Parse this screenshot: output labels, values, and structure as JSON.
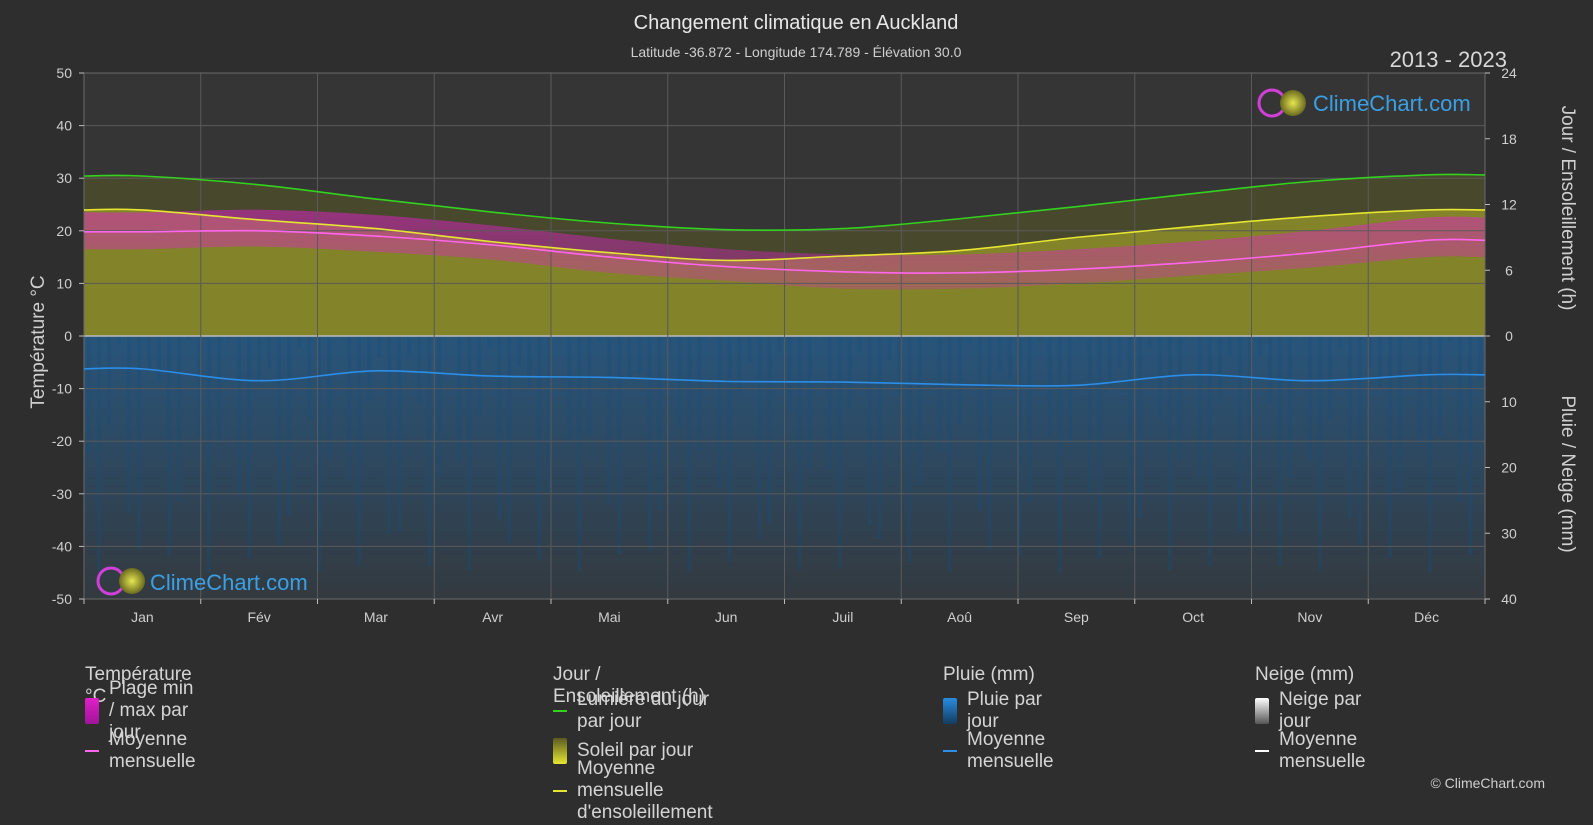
{
  "header": {
    "title": "Changement climatique en Auckland",
    "subtitle": "Latitude -36.872 - Longitude 174.789 - Élévation 30.0",
    "years": "2013 - 2023"
  },
  "brand": {
    "name": "ClimeChart.com",
    "copyright": "© ClimeChart.com"
  },
  "colors": {
    "background": "#2e2e2e",
    "temp_range": "#e020c8",
    "temp_mean": "#ff66ee",
    "daylight": "#32d21e",
    "sunshine": "#b9b92c",
    "sunshine_mean": "#e6e632",
    "rain": "#1e6fb4",
    "rain_mean": "#2b8ee8",
    "snow_mean": "#ffffff"
  },
  "chart_data": {
    "type": "area",
    "categories": [
      "Jan",
      "Fév",
      "Mar",
      "Avr",
      "Mai",
      "Jun",
      "Juil",
      "Aoû",
      "Sep",
      "Oct",
      "Nov",
      "Déc"
    ],
    "y_left": {
      "label": "Température °C",
      "min": -50,
      "max": 50,
      "ticks": [
        50,
        40,
        30,
        20,
        10,
        0,
        -10,
        -20,
        -30,
        -40,
        -50
      ]
    },
    "y_right_top": {
      "label": "Jour / Ensoleillement (h)",
      "min": 0,
      "max": 24,
      "ticks": [
        24,
        18,
        12,
        6,
        0
      ]
    },
    "y_right_bottom": {
      "label": "Pluie / Neige (mm)",
      "min": 0,
      "max": 40,
      "ticks": [
        0,
        10,
        20,
        30,
        40
      ]
    },
    "grid": true,
    "series": [
      {
        "name": "Lumière du jour par jour",
        "unit": "h",
        "values": [
          14.6,
          13.8,
          12.5,
          11.3,
          10.3,
          9.7,
          9.8,
          10.7,
          11.8,
          13.0,
          14.1,
          14.7
        ]
      },
      {
        "name": "Moyenne mensuelle d'ensoleillement",
        "unit": "h",
        "values": [
          11.5,
          10.6,
          9.8,
          8.6,
          7.6,
          6.9,
          7.3,
          7.8,
          9.0,
          10.0,
          10.9,
          11.5
        ]
      },
      {
        "name": "Moyenne mensuelle",
        "group": "Température °C",
        "unit": "°C",
        "values": [
          19.8,
          20.0,
          19.0,
          17.3,
          15.0,
          13.2,
          12.2,
          12.0,
          12.7,
          14.0,
          15.8,
          18.2
        ]
      },
      {
        "name": "Température max",
        "unit": "°C",
        "values": [
          23.5,
          24.0,
          23.0,
          21.0,
          18.5,
          16.5,
          15.5,
          15.5,
          16.5,
          18.0,
          20.0,
          22.5
        ]
      },
      {
        "name": "Température min",
        "unit": "°C",
        "values": [
          16.5,
          17.0,
          16.0,
          14.5,
          12.0,
          10.5,
          9.0,
          9.0,
          10.0,
          11.5,
          13.0,
          15.0
        ]
      },
      {
        "name": "Moyenne mensuelle",
        "group": "Pluie (mm)",
        "unit": "mm",
        "values": [
          5.0,
          6.8,
          5.3,
          6.1,
          6.3,
          6.9,
          7.0,
          7.4,
          7.5,
          5.9,
          6.8,
          5.9
        ]
      },
      {
        "name": "Moyenne mensuelle",
        "group": "Neige (mm)",
        "unit": "mm",
        "values": [
          0,
          0,
          0,
          0,
          0,
          0,
          0,
          0,
          0,
          0,
          0,
          0
        ]
      }
    ]
  },
  "legend": {
    "temperature": {
      "title": "Température °C",
      "items": [
        "Plage min / max par jour",
        "Moyenne mensuelle"
      ]
    },
    "sun": {
      "title": "Jour / Ensoleillement (h)",
      "items": [
        "Lumière du jour par jour",
        "Soleil par jour",
        "Moyenne mensuelle d'ensoleillement"
      ]
    },
    "rain": {
      "title": "Pluie (mm)",
      "items": [
        "Pluie par jour",
        "Moyenne mensuelle"
      ]
    },
    "snow": {
      "title": "Neige (mm)",
      "items": [
        "Neige par jour",
        "Moyenne mensuelle"
      ]
    }
  }
}
